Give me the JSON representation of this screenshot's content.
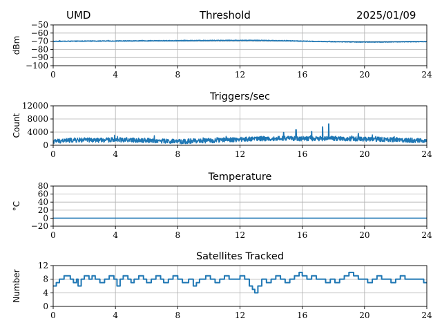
{
  "header": {
    "site": "UMD",
    "title": "Threshold",
    "date": "2025/01/09"
  },
  "style": {
    "line_color": "#1f77b4",
    "grid_color": "#b0b0b0"
  },
  "chart_data": [
    {
      "type": "line",
      "title": "",
      "ylabel": "dBm",
      "xlim": [
        0,
        24
      ],
      "ylim": [
        -100,
        -50
      ],
      "xticks": [
        0,
        4,
        8,
        12,
        16,
        20,
        24
      ],
      "yticks": [
        -100,
        -90,
        -80,
        -70,
        -60,
        -50
      ],
      "grid": true,
      "series": [
        {
          "points": [
            [
              0,
              -70.2
            ],
            [
              1,
              -70.0
            ],
            [
              2,
              -69.9
            ],
            [
              3,
              -69.8
            ],
            [
              4,
              -69.7
            ],
            [
              5,
              -69.6
            ],
            [
              6,
              -69.5
            ],
            [
              7,
              -69.4
            ],
            [
              8,
              -69.3
            ],
            [
              9,
              -69.2
            ],
            [
              10,
              -69.1
            ],
            [
              11,
              -69.0
            ],
            [
              12,
              -69.0
            ],
            [
              13,
              -69.0
            ],
            [
              14,
              -69.2
            ],
            [
              15,
              -69.4
            ],
            [
              16,
              -69.9
            ],
            [
              17,
              -70.3
            ],
            [
              18,
              -70.6
            ],
            [
              19,
              -70.8
            ],
            [
              20,
              -71.0
            ],
            [
              21,
              -71.0
            ],
            [
              22,
              -70.8
            ],
            [
              23,
              -70.6
            ],
            [
              24,
              -70.5
            ]
          ],
          "noise": 0.4
        }
      ]
    },
    {
      "type": "line",
      "title": "Triggers/sec",
      "ylabel": "Count",
      "xlim": [
        0,
        24
      ],
      "ylim": [
        0,
        12000
      ],
      "xticks": [
        0,
        4,
        8,
        12,
        16,
        20,
        24
      ],
      "yticks": [
        0,
        4000,
        8000,
        12000
      ],
      "grid": true,
      "series": [
        {
          "points": [
            [
              0,
              1200
            ],
            [
              1,
              1500
            ],
            [
              2,
              1600
            ],
            [
              3,
              1500
            ],
            [
              4,
              1700
            ],
            [
              5,
              1600
            ],
            [
              6,
              1500
            ],
            [
              7,
              1300
            ],
            [
              8,
              1100
            ],
            [
              9,
              1300
            ],
            [
              10,
              1400
            ],
            [
              11,
              1600
            ],
            [
              12,
              1800
            ],
            [
              13,
              2000
            ],
            [
              14,
              2000
            ],
            [
              15,
              2100
            ],
            [
              16,
              2000
            ],
            [
              17,
              2000
            ],
            [
              18,
              2100
            ],
            [
              19,
              2000
            ],
            [
              20,
              1900
            ],
            [
              21,
              1800
            ],
            [
              22,
              1700
            ],
            [
              23,
              1500
            ],
            [
              24,
              1400
            ]
          ],
          "noise": 700,
          "spikes": [
            [
              14.8,
              3900
            ],
            [
              15.6,
              4700
            ],
            [
              16.6,
              4200
            ],
            [
              17.3,
              5600
            ],
            [
              17.7,
              6500
            ],
            [
              19.6,
              3600
            ]
          ]
        }
      ]
    },
    {
      "type": "line",
      "title": "Temperature",
      "ylabel": "°C",
      "xlim": [
        0,
        24
      ],
      "ylim": [
        -20,
        80
      ],
      "xticks": [
        0,
        4,
        8,
        12,
        16,
        20,
        24
      ],
      "yticks": [
        -20,
        0,
        20,
        40,
        60,
        80
      ],
      "grid": true,
      "series": [
        {
          "points": [
            [
              0,
              0
            ],
            [
              24,
              0
            ]
          ],
          "noise": 0
        }
      ]
    },
    {
      "type": "line",
      "title": "Satellites Tracked",
      "ylabel": "Number",
      "xlim": [
        0,
        24
      ],
      "ylim": [
        0,
        12
      ],
      "xticks": [
        0,
        4,
        8,
        12,
        16,
        20,
        24
      ],
      "yticks": [
        0,
        4,
        8,
        12
      ],
      "grid": true,
      "series": [
        {
          "step": true,
          "points": [
            [
              0,
              6
            ],
            [
              0.2,
              7
            ],
            [
              0.4,
              8
            ],
            [
              0.7,
              9
            ],
            [
              1.1,
              8
            ],
            [
              1.3,
              7
            ],
            [
              1.5,
              8
            ],
            [
              1.6,
              6
            ],
            [
              1.8,
              8
            ],
            [
              2.0,
              9
            ],
            [
              2.3,
              8
            ],
            [
              2.5,
              9
            ],
            [
              2.7,
              8
            ],
            [
              3.0,
              7
            ],
            [
              3.3,
              8
            ],
            [
              3.6,
              9
            ],
            [
              3.9,
              8
            ],
            [
              4.1,
              6
            ],
            [
              4.3,
              8
            ],
            [
              4.5,
              9
            ],
            [
              4.8,
              8
            ],
            [
              5.0,
              7
            ],
            [
              5.2,
              8
            ],
            [
              5.5,
              9
            ],
            [
              5.8,
              8
            ],
            [
              6.0,
              7
            ],
            [
              6.3,
              8
            ],
            [
              6.6,
              9
            ],
            [
              6.9,
              8
            ],
            [
              7.1,
              7
            ],
            [
              7.4,
              8
            ],
            [
              7.7,
              9
            ],
            [
              8.0,
              8
            ],
            [
              8.3,
              7
            ],
            [
              8.7,
              8
            ],
            [
              9.0,
              6
            ],
            [
              9.2,
              7
            ],
            [
              9.4,
              8
            ],
            [
              9.8,
              9
            ],
            [
              10.1,
              8
            ],
            [
              10.4,
              7
            ],
            [
              10.7,
              8
            ],
            [
              11.0,
              9
            ],
            [
              11.3,
              8
            ],
            [
              11.6,
              8
            ],
            [
              12.0,
              9
            ],
            [
              12.3,
              8
            ],
            [
              12.6,
              6
            ],
            [
              12.8,
              5
            ],
            [
              12.95,
              4
            ],
            [
              13.15,
              6
            ],
            [
              13.4,
              8
            ],
            [
              13.7,
              7
            ],
            [
              14.0,
              8
            ],
            [
              14.3,
              9
            ],
            [
              14.6,
              8
            ],
            [
              14.9,
              7
            ],
            [
              15.2,
              8
            ],
            [
              15.5,
              9
            ],
            [
              15.8,
              10
            ],
            [
              16.0,
              9
            ],
            [
              16.3,
              8
            ],
            [
              16.6,
              9
            ],
            [
              16.9,
              8
            ],
            [
              17.2,
              8
            ],
            [
              17.5,
              7
            ],
            [
              17.8,
              8
            ],
            [
              18.1,
              7
            ],
            [
              18.4,
              8
            ],
            [
              18.7,
              9
            ],
            [
              19.0,
              10
            ],
            [
              19.3,
              9
            ],
            [
              19.6,
              8
            ],
            [
              19.9,
              8
            ],
            [
              20.2,
              7
            ],
            [
              20.5,
              8
            ],
            [
              20.8,
              9
            ],
            [
              21.1,
              8
            ],
            [
              21.4,
              8
            ],
            [
              21.7,
              7
            ],
            [
              22.0,
              8
            ],
            [
              22.3,
              9
            ],
            [
              22.6,
              8
            ],
            [
              22.9,
              8
            ],
            [
              23.2,
              8
            ],
            [
              23.5,
              8
            ],
            [
              23.8,
              7
            ],
            [
              24,
              7
            ]
          ],
          "noise": 0
        }
      ]
    }
  ]
}
